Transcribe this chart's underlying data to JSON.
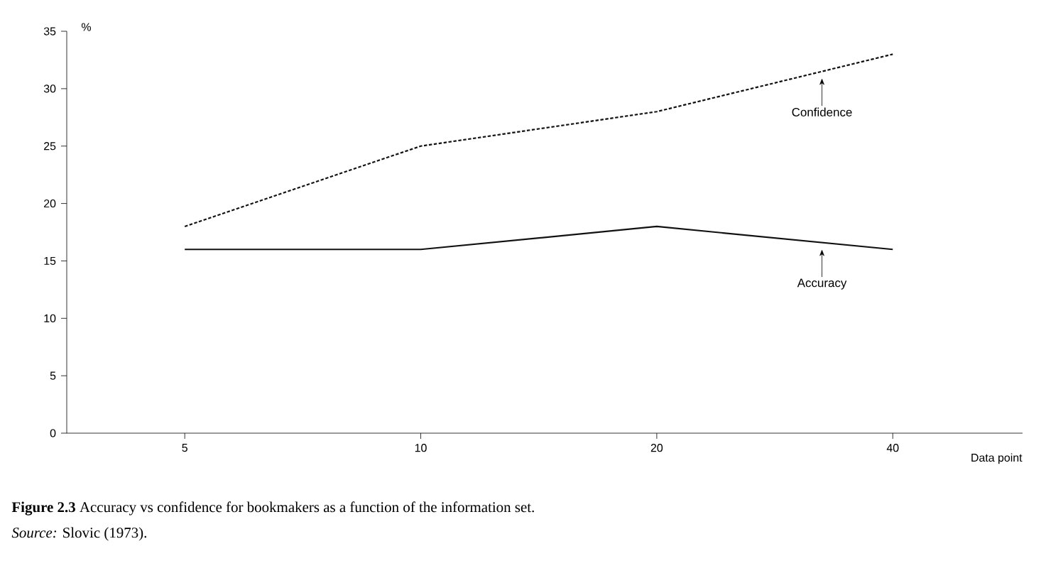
{
  "chart_data": {
    "type": "line",
    "title": "**Figure 2.3**   Accuracy vs confidence for bookmakers as a function of the information set.",
    "annotations": [
      "*Source:* Slovic (1973)."
    ],
    "xlabel": "Data point",
    "ylabel": "%",
    "categories": [
      "5",
      "10",
      "20",
      "40"
    ],
    "series": [
      {
        "name": "Confidence",
        "color": "#111111",
        "line_style": "dashed",
        "values": [
          18,
          25,
          28,
          33
        ]
      },
      {
        "name": "Accuracy",
        "color": "#111111",
        "line_style": "solid",
        "values": [
          16,
          16,
          18,
          16
        ]
      }
    ],
    "ylim": [
      0,
      35
    ],
    "yticks": [
      0,
      5,
      10,
      15,
      20,
      25,
      30,
      35
    ],
    "grid": false,
    "legend": false
  }
}
